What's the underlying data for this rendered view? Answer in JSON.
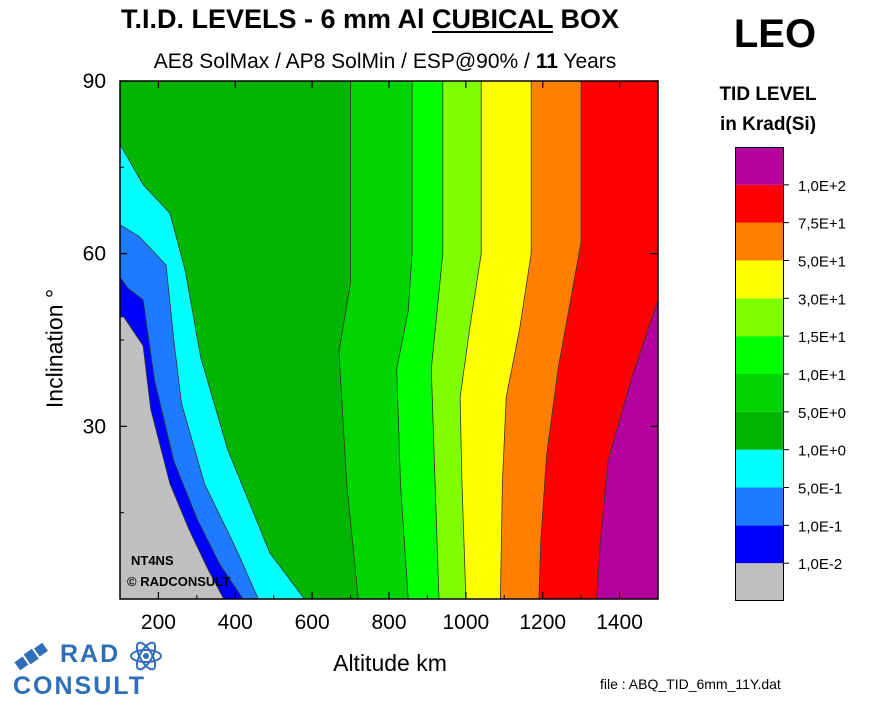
{
  "header": {
    "title_pre": "T.I.D. LEVELS - 6 mm Al ",
    "title_underlined": "CUBICAL",
    "title_post": " BOX",
    "subtitle_pre": "AE8 SolMax / AP8 SolMin / ESP@90% / ",
    "subtitle_bold": "11",
    "subtitle_post": " Years",
    "orbit": "LEO"
  },
  "legend": {
    "title_line1": "TID LEVEL",
    "title_line2": "in Krad(Si)",
    "levels": [
      "1,0E-2",
      "1,0E-1",
      "5,0E-1",
      "1,0E+0",
      "5,0E+0",
      "1,0E+1",
      "1,5E+1",
      "3,0E+1",
      "5,0E+1",
      "7,5E+1",
      "1,0E+2"
    ],
    "colors": [
      "#c0c0c0",
      "#0000ff",
      "#1e7bff",
      "#00ffff",
      "#00b400",
      "#00d400",
      "#00ff00",
      "#80ff00",
      "#ffff00",
      "#ff8000",
      "#ff0000",
      "#b4009c"
    ]
  },
  "annotation": {
    "line1": "NT4NS",
    "line2": "© RADCONSULT"
  },
  "footer": {
    "file": "file : ABQ_TID_6mm_11Y.dat",
    "logo_top": "RAD",
    "logo_bottom": "CONSULT"
  },
  "chart_data": {
    "type": "contour",
    "title": "T.I.D. LEVELS - 6 mm Al CUBICAL BOX",
    "subtitle": "AE8 SolMax / AP8 SolMin / ESP@90% / 11 Years",
    "xlabel": "Altitude km",
    "ylabel": "Inclination °",
    "xlim": [
      100,
      1500
    ],
    "ylim": [
      0,
      90
    ],
    "xticks": [
      200,
      400,
      600,
      800,
      1000,
      1200,
      1400
    ],
    "yticks": [
      30,
      60,
      90
    ],
    "contour_levels_krad": [
      0.01,
      0.1,
      0.5,
      1.0,
      5.0,
      10,
      15,
      30,
      50,
      75,
      100
    ],
    "boundaries": [
      {
        "level": "1,0E-2",
        "points": [
          [
            100,
            49
          ],
          [
            110,
            49
          ],
          [
            160,
            44
          ],
          [
            180,
            33
          ],
          [
            230,
            20
          ],
          [
            280,
            12
          ],
          [
            330,
            5
          ],
          [
            370,
            0
          ]
        ]
      },
      {
        "level": "1,0E-1",
        "points": [
          [
            100,
            56
          ],
          [
            120,
            54
          ],
          [
            160,
            52
          ],
          [
            190,
            38
          ],
          [
            240,
            24
          ],
          [
            300,
            14
          ],
          [
            360,
            6
          ],
          [
            420,
            0
          ]
        ]
      },
      {
        "level": "5,0E-1",
        "points": [
          [
            100,
            65
          ],
          [
            150,
            63
          ],
          [
            220,
            58
          ],
          [
            240,
            45
          ],
          [
            260,
            34
          ],
          [
            320,
            20
          ],
          [
            400,
            9
          ],
          [
            460,
            0
          ]
        ]
      },
      {
        "level": "1,0E+0",
        "points": [
          [
            100,
            79
          ],
          [
            160,
            72
          ],
          [
            230,
            67
          ],
          [
            270,
            57
          ],
          [
            310,
            42
          ],
          [
            380,
            26
          ],
          [
            490,
            8
          ],
          [
            580,
            0
          ]
        ]
      },
      {
        "level": "5,0E+0",
        "points": [
          [
            700,
            90
          ],
          [
            700,
            55
          ],
          [
            670,
            43
          ],
          [
            690,
            20
          ],
          [
            720,
            0
          ]
        ]
      },
      {
        "level": "1,0E+1",
        "points": [
          [
            860,
            90
          ],
          [
            860,
            60
          ],
          [
            850,
            50
          ],
          [
            820,
            40
          ],
          [
            830,
            20
          ],
          [
            850,
            0
          ]
        ]
      },
      {
        "level": "1,5E+1",
        "points": [
          [
            940,
            90
          ],
          [
            940,
            60
          ],
          [
            910,
            40
          ],
          [
            920,
            20
          ],
          [
            930,
            0
          ]
        ]
      },
      {
        "level": "3,0E+1",
        "points": [
          [
            1040,
            90
          ],
          [
            1040,
            60
          ],
          [
            1010,
            47
          ],
          [
            985,
            35
          ],
          [
            990,
            20
          ],
          [
            1000,
            0
          ]
        ]
      },
      {
        "level": "5,0E+1",
        "points": [
          [
            1170,
            90
          ],
          [
            1170,
            60
          ],
          [
            1140,
            47
          ],
          [
            1105,
            35
          ],
          [
            1095,
            20
          ],
          [
            1090,
            0
          ]
        ]
      },
      {
        "level": "7,5E+1",
        "points": [
          [
            1300,
            90
          ],
          [
            1300,
            62
          ],
          [
            1240,
            40
          ],
          [
            1210,
            25
          ],
          [
            1195,
            10
          ],
          [
            1190,
            0
          ]
        ]
      },
      {
        "level": "1,0E+2",
        "points": [
          [
            1500,
            52
          ],
          [
            1430,
            38
          ],
          [
            1370,
            24
          ],
          [
            1350,
            10
          ],
          [
            1340,
            0
          ]
        ]
      }
    ]
  }
}
